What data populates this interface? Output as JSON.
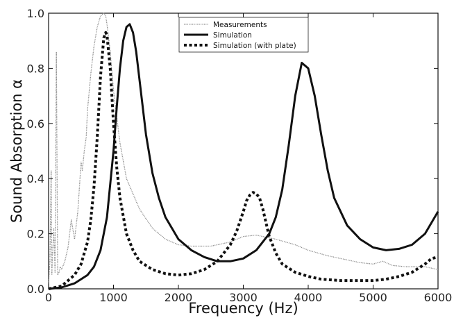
{
  "chart_data": {
    "type": "line",
    "xlabel": "Frequency (Hz)",
    "ylabel": "Sound Absorption α",
    "xlim": [
      0,
      6000
    ],
    "ylim": [
      0,
      1.0
    ],
    "xticks": [
      "0",
      "1000",
      "2000",
      "3000",
      "4000",
      "5000",
      "6000"
    ],
    "yticks": [
      "0.0",
      "0.2",
      "0.4",
      "0.6",
      "0.8",
      "1.0"
    ],
    "grid": false,
    "legend_position": "top-center",
    "series": [
      {
        "name": "Measurements",
        "style": "dotted-gray",
        "color": "#8a8a8a",
        "x": [
          0,
          20,
          40,
          50,
          60,
          80,
          100,
          120,
          140,
          160,
          180,
          200,
          250,
          300,
          350,
          400,
          450,
          500,
          520,
          550,
          580,
          600,
          650,
          700,
          750,
          800,
          850,
          880,
          900,
          950,
          1000,
          1100,
          1200,
          1400,
          1600,
          1800,
          2000,
          2200,
          2500,
          2800,
          3000,
          3200,
          3500,
          3800,
          4000,
          4300,
          4500,
          4800,
          5000,
          5150,
          5300,
          5500,
          5800,
          6000
        ],
        "y": [
          0.02,
          0.1,
          0.43,
          0.05,
          0.12,
          0.22,
          0.06,
          0.86,
          0.05,
          0.06,
          0.08,
          0.07,
          0.1,
          0.15,
          0.25,
          0.18,
          0.28,
          0.46,
          0.43,
          0.5,
          0.55,
          0.65,
          0.78,
          0.88,
          0.95,
          0.99,
          1.0,
          0.99,
          0.96,
          0.86,
          0.72,
          0.53,
          0.4,
          0.29,
          0.22,
          0.18,
          0.16,
          0.155,
          0.155,
          0.17,
          0.19,
          0.195,
          0.18,
          0.16,
          0.14,
          0.12,
          0.11,
          0.095,
          0.09,
          0.1,
          0.085,
          0.08,
          0.08,
          0.07
        ]
      },
      {
        "name": "Simulation",
        "style": "solid-black",
        "color": "#111111",
        "x": [
          0,
          200,
          400,
          600,
          700,
          800,
          900,
          1000,
          1050,
          1100,
          1150,
          1200,
          1250,
          1300,
          1350,
          1400,
          1500,
          1600,
          1700,
          1800,
          2000,
          2200,
          2400,
          2600,
          2800,
          3000,
          3200,
          3400,
          3500,
          3600,
          3700,
          3800,
          3900,
          4000,
          4100,
          4200,
          4300,
          4400,
          4600,
          4800,
          5000,
          5200,
          5400,
          5600,
          5800,
          6000
        ],
        "y": [
          0.0,
          0.005,
          0.02,
          0.05,
          0.08,
          0.14,
          0.26,
          0.5,
          0.66,
          0.8,
          0.9,
          0.95,
          0.96,
          0.93,
          0.86,
          0.76,
          0.56,
          0.42,
          0.33,
          0.26,
          0.18,
          0.14,
          0.115,
          0.1,
          0.1,
          0.11,
          0.14,
          0.2,
          0.26,
          0.36,
          0.52,
          0.7,
          0.82,
          0.8,
          0.7,
          0.56,
          0.43,
          0.33,
          0.23,
          0.18,
          0.15,
          0.14,
          0.145,
          0.16,
          0.2,
          0.28
        ]
      },
      {
        "name": "Simulation (with plate)",
        "style": "dashed-black",
        "color": "#111111",
        "x": [
          0,
          200,
          400,
          500,
          600,
          650,
          700,
          750,
          800,
          850,
          880,
          900,
          950,
          1000,
          1050,
          1100,
          1200,
          1300,
          1400,
          1600,
          1800,
          2000,
          2200,
          2400,
          2600,
          2800,
          2900,
          3000,
          3050,
          3100,
          3150,
          3200,
          3250,
          3300,
          3350,
          3400,
          3500,
          3600,
          3800,
          4000,
          4200,
          4500,
          4800,
          5000,
          5200,
          5400,
          5600,
          5800,
          5900,
          6000
        ],
        "y": [
          0.0,
          0.01,
          0.05,
          0.09,
          0.17,
          0.25,
          0.37,
          0.55,
          0.77,
          0.91,
          0.93,
          0.92,
          0.8,
          0.6,
          0.44,
          0.33,
          0.2,
          0.14,
          0.1,
          0.07,
          0.055,
          0.05,
          0.055,
          0.07,
          0.1,
          0.16,
          0.21,
          0.28,
          0.32,
          0.34,
          0.35,
          0.345,
          0.33,
          0.29,
          0.24,
          0.19,
          0.13,
          0.09,
          0.06,
          0.045,
          0.035,
          0.03,
          0.03,
          0.03,
          0.035,
          0.045,
          0.06,
          0.09,
          0.11,
          0.115
        ]
      }
    ]
  }
}
